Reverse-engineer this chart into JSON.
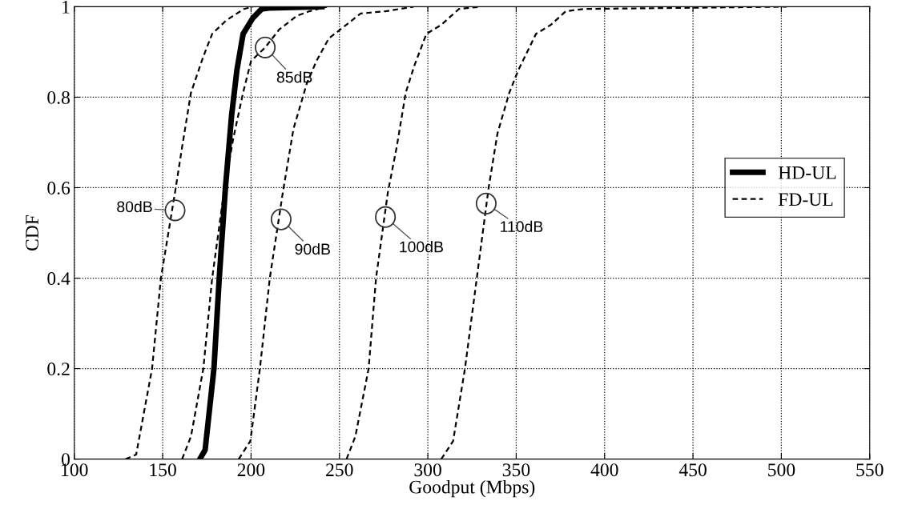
{
  "chart_data": {
    "type": "line",
    "xlabel": "Goodput (Mbps)",
    "ylabel": "CDF",
    "xlim": [
      100,
      550
    ],
    "ylim": [
      0,
      1
    ],
    "xticks": [
      100,
      150,
      200,
      250,
      300,
      350,
      400,
      450,
      500,
      550
    ],
    "yticks": [
      0,
      0.2,
      0.4,
      0.6,
      0.8,
      1
    ],
    "grid": true,
    "legend": "center right",
    "marker": "none",
    "series": [
      {
        "name": "HD-UL",
        "color": "#000000",
        "line_style": "solid",
        "x": [
          171,
          174,
          179,
          182,
          185.5,
          189,
          192,
          195.5,
          201,
          206,
          210,
          240
        ],
        "values": [
          0,
          0.02,
          0.2,
          0.4,
          0.6,
          0.76,
          0.86,
          0.94,
          0.975,
          0.995,
          0.997,
          1
        ]
      },
      {
        "name": "FD-UL",
        "color": "#000000",
        "line_style": "dashed",
        "x": [
          129,
          135,
          144,
          149,
          157,
          161,
          166,
          173,
          178,
          186,
          196,
          201
        ],
        "values": [
          0,
          0.01,
          0.2,
          0.4,
          0.59,
          0.69,
          0.81,
          0.89,
          0.94,
          0.97,
          0.995,
          1
        ]
      },
      {
        "color": "#000000",
        "line_style": "dashed",
        "x": [
          161,
          166,
          173,
          178,
          185,
          190,
          195.5,
          200,
          208,
          216,
          226,
          233,
          243
        ],
        "values": [
          0,
          0.05,
          0.2,
          0.4,
          0.6,
          0.71,
          0.81,
          0.88,
          0.91,
          0.95,
          0.98,
          0.99,
          1
        ]
      },
      {
        "color": "#000000",
        "line_style": "dashed",
        "x": [
          193,
          199.6,
          205,
          210.6,
          218,
          224,
          231.5,
          237,
          244,
          250.6,
          262,
          276,
          292
        ],
        "values": [
          0,
          0.04,
          0.2,
          0.4,
          0.59,
          0.73,
          0.83,
          0.88,
          0.93,
          0.95,
          0.985,
          0.99,
          1
        ]
      },
      {
        "color": "#000000",
        "line_style": "dashed",
        "x": [
          254,
          259,
          266.5,
          270.7,
          277.4,
          282.4,
          287.5,
          292.4,
          299.2,
          307.6,
          317.6,
          330
        ],
        "values": [
          0,
          0.05,
          0.2,
          0.4,
          0.59,
          0.69,
          0.81,
          0.87,
          0.94,
          0.96,
          0.995,
          1
        ]
      },
      {
        "color": "#000000",
        "line_style": "dashed",
        "x": [
          307.6,
          314.3,
          321,
          327.7,
          334.4,
          339.4,
          346.1,
          351.2,
          361.2,
          369.6,
          378,
          388,
          503
        ],
        "values": [
          0,
          0.04,
          0.2,
          0.4,
          0.6,
          0.72,
          0.81,
          0.86,
          0.94,
          0.96,
          0.99,
          0.995,
          1
        ]
      }
    ],
    "annotations": [
      {
        "text": "80dB",
        "x": 157,
        "y": 0.55
      },
      {
        "text": "85dB",
        "x": 208,
        "y": 0.91
      },
      {
        "text": "90dB",
        "x": 217,
        "y": 0.53
      },
      {
        "text": "100dB",
        "x": 276,
        "y": 0.535
      },
      {
        "text": "110dB",
        "x": 333,
        "y": 0.565
      }
    ]
  }
}
